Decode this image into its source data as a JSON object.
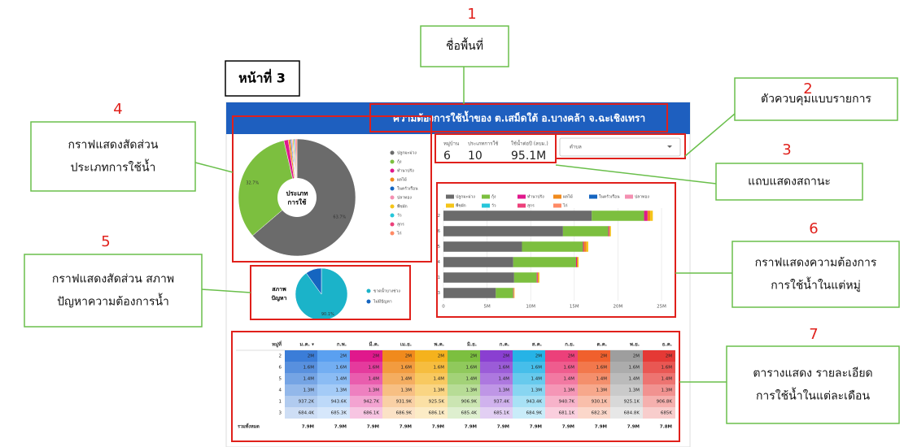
{
  "page_label": "หน้าที่ 3",
  "callouts": [
    {
      "number": "1",
      "lines": [
        "ชื่อพื้นที่"
      ]
    },
    {
      "number": "2",
      "lines": [
        "ตัวควบคุมแบบรายการ"
      ]
    },
    {
      "number": "3",
      "lines": [
        "แถบแสดงสถานะ"
      ]
    },
    {
      "number": "4",
      "lines": [
        "กราฟแสดงสัดส่วน",
        "ประเภทการใช้น้ำ"
      ]
    },
    {
      "number": "5",
      "lines": [
        "กราฟแสดงสัดส่วน สภาพ",
        "ปัญหาความต้องการน้ำ"
      ]
    },
    {
      "number": "6",
      "lines": [
        "กราฟแสดงความต้องการ",
        "การใช้น้ำในแต่หมู่"
      ]
    },
    {
      "number": "7",
      "lines": [
        "ตารางแสดง รายละเอียด",
        "การใช้น้ำในแต่ละเดือน"
      ]
    }
  ],
  "dashboard": {
    "header": "ความต้องการใช้น้ำของ ต.เสม็ดใต้ อ.บางคล้า จ.ฉะเชิงเทรา",
    "scorecards": [
      {
        "label": "หมู่บ้าน",
        "value": "6"
      },
      {
        "label": "ประเภทการใช้",
        "value": "10"
      },
      {
        "label": "ใช้น้ำต่อปี (ลบม.)",
        "value": "95.1M"
      }
    ],
    "dropdown": "ตำบล",
    "pie_usage": {
      "type": "pie",
      "center_label": [
        "ประเภท",
        "การใช้"
      ],
      "categories": [
        "ปลูกมะม่วง",
        "กุ้ง",
        "ทำนาปรัง",
        "ผลไม้",
        "ในครัวเรือน",
        "ปลาทอง",
        "พืชผัก",
        "วัว",
        "สุกร",
        "ไก่"
      ],
      "colors": [
        "#6b6b6b",
        "#7cbf3f",
        "#e0188c",
        "#f08a1d",
        "#1565c0",
        "#f48fb1",
        "#f5c518",
        "#26c6da",
        "#ec407a",
        "#ff8a65"
      ],
      "values": [
        63.7,
        32.7,
        1.2,
        0.6,
        0.3,
        0.3,
        0.3,
        0.3,
        0.3,
        0.3
      ],
      "value_labels": [
        "63.7%",
        "32.7%",
        null,
        null,
        null,
        null,
        null,
        null,
        null,
        null
      ]
    },
    "pie_problem": {
      "type": "pie",
      "center_label": [
        "สภาพ",
        "ปัญหา"
      ],
      "categories": [
        "ขาดน้ำบางช่วง",
        "ไม่มีปัญหา"
      ],
      "colors": [
        "#1bb3c9",
        "#1565c0"
      ],
      "values": [
        90.1,
        9.9
      ],
      "value_labels": [
        "90.1%",
        null
      ]
    },
    "bar_villages": {
      "type": "bar",
      "orientation": "horizontal",
      "stacked": true,
      "categories": [
        "2",
        "6",
        "5",
        "4",
        "1",
        "3"
      ],
      "series": [
        {
          "name": "ปลูกมะม่วง",
          "color": "#6b6b6b",
          "values": [
            17000000,
            13700000,
            9000000,
            8000000,
            8100000,
            6000000
          ]
        },
        {
          "name": "กุ้ง",
          "color": "#7cbf3f",
          "values": [
            6000000,
            5200000,
            7000000,
            7200000,
            2600000,
            2000000
          ]
        },
        {
          "name": "ทำนาปรัง",
          "color": "#e0188c",
          "values": [
            400000,
            100000,
            100000,
            100000,
            100000,
            50000
          ]
        },
        {
          "name": "ผลไม้",
          "color": "#f08a1d",
          "values": [
            300000,
            100000,
            300000,
            100000,
            100000,
            50000
          ]
        },
        {
          "name": "ในครัวเรือน",
          "color": "#1565c0",
          "values": [
            0,
            0,
            0,
            0,
            0,
            0
          ]
        },
        {
          "name": "ปลาทอง",
          "color": "#f48fb1",
          "values": [
            0,
            0,
            0,
            0,
            0,
            0
          ]
        },
        {
          "name": "พืชผัก",
          "color": "#f5c518",
          "values": [
            300000,
            100000,
            200000,
            100000,
            100000,
            50000
          ]
        },
        {
          "name": "วัว",
          "color": "#26c6da",
          "values": [
            0,
            0,
            0,
            0,
            0,
            0
          ]
        },
        {
          "name": "สุกร",
          "color": "#ec407a",
          "values": [
            0,
            0,
            0,
            0,
            0,
            0
          ]
        },
        {
          "name": "ไก่",
          "color": "#ff8a65",
          "values": [
            0,
            0,
            0,
            0,
            0,
            0
          ]
        }
      ],
      "xlim": [
        0,
        25000000
      ],
      "xticks": [
        0,
        {
          "value": 5000000,
          "label": "5M"
        },
        {
          "value": 10000000,
          "label": "10M"
        },
        {
          "value": 15000000,
          "label": "15M"
        },
        {
          "value": 20000000,
          "label": "20M"
        },
        {
          "value": 25000000,
          "label": "25M"
        }
      ],
      "grid": true
    },
    "table": {
      "columns": [
        "หมู่ที่",
        "ม.ค. ▾",
        "ก.พ.",
        "มี.ค.",
        "เม.ย.",
        "พ.ค.",
        "มิ.ย.",
        "ก.ค.",
        "ส.ค.",
        "ก.ย.",
        "ต.ค.",
        "พ.ย.",
        "ธ.ค."
      ],
      "rows": [
        [
          "2",
          "2M",
          "2M",
          "2M",
          "2M",
          "2M",
          "2M",
          "2M",
          "2M",
          "2M",
          "2M",
          "2M",
          "2M"
        ],
        [
          "6",
          "1.6M",
          "1.6M",
          "1.6M",
          "1.6M",
          "1.6M",
          "1.6M",
          "1.6M",
          "1.6M",
          "1.6M",
          "1.6M",
          "1.6M",
          "1.6M"
        ],
        [
          "5",
          "1.4M",
          "1.4M",
          "1.4M",
          "1.4M",
          "1.4M",
          "1.4M",
          "1.4M",
          "1.4M",
          "1.4M",
          "1.4M",
          "1.4M",
          "1.4M"
        ],
        [
          "4",
          "1.3M",
          "1.3M",
          "1.3M",
          "1.3M",
          "1.3M",
          "1.3M",
          "1.3M",
          "1.3M",
          "1.3M",
          "1.3M",
          "1.3M",
          "1.3M"
        ],
        [
          "1",
          "937.2K",
          "943.6K",
          "942.7K",
          "931.9K",
          "925.5K",
          "906.9K",
          "937.4K",
          "943.4K",
          "940.7K",
          "930.1K",
          "925.1K",
          "906.8K"
        ],
        [
          "3",
          "684.4K",
          "685.3K",
          "686.1K",
          "686.9K",
          "686.1K",
          "685.4K",
          "685.1K",
          "684.9K",
          "681.1K",
          "682.3K",
          "684.8K",
          "685K"
        ]
      ],
      "total": [
        "รวมทั้งหมด",
        "7.9M",
        "7.9M",
        "7.9M",
        "7.9M",
        "7.9M",
        "7.9M",
        "7.9M",
        "7.9M",
        "7.9M",
        "7.9M",
        "7.9M",
        "7.8M"
      ]
    }
  }
}
